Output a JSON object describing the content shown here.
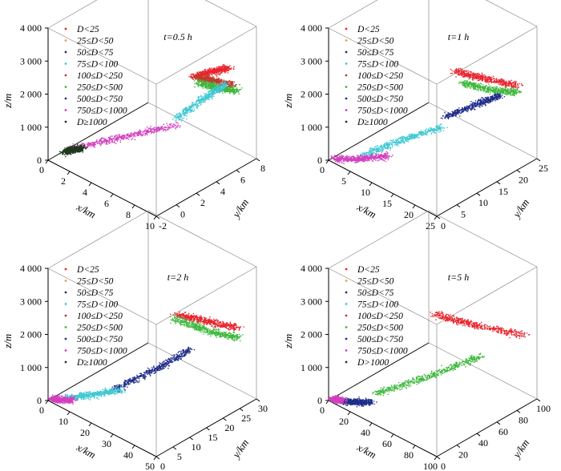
{
  "legend_colors": [
    "#e8242d",
    "#f39c3a",
    "#1f2d8a",
    "#3fc8d2",
    "#c0392b",
    "#3db83c",
    "#2b2f8f",
    "#d33fbf",
    "#1f3a1f"
  ],
  "chart_data": [
    {
      "type": "scatter",
      "panel": "a",
      "annotation": "t=0.5 h",
      "xlabel": "x/km",
      "ylabel": "y/km",
      "zlabel": "z/m",
      "z_ticks": [
        "0",
        "1 000",
        "2 000",
        "3 000",
        "4 000"
      ],
      "x_ticks": [
        "0",
        "2",
        "4",
        "6",
        "8",
        "10"
      ],
      "y_ticks": [
        "-2",
        "0",
        "2",
        "4",
        "6",
        "8"
      ],
      "legend": [
        "D<25",
        "25≤D<50",
        "50≤D<75",
        "75≤D<100",
        "100≤D<250",
        "250≤D<500",
        "500≤D<750",
        "750≤D<1000",
        "D≥1000"
      ],
      "xlim": [
        0,
        10
      ],
      "ylim": [
        -2,
        9
      ],
      "zlim": [
        0,
        4000
      ],
      "series": [
        {
          "name": "D<25",
          "x": [
            8.5,
            8.8,
            9.0
          ],
          "y": [
            4.0,
            5.5,
            7.0
          ],
          "z": [
            3050,
            3000,
            2900
          ]
        },
        {
          "name": "100≤D<250",
          "x": [
            8.2,
            8.6,
            9.0
          ],
          "y": [
            4.5,
            6.0,
            7.5
          ],
          "z": [
            2900,
            2600,
            2300
          ]
        },
        {
          "name": "250≤D<500",
          "x": [
            8.0,
            8.5,
            9.0
          ],
          "y": [
            5.0,
            6.5,
            8.0
          ],
          "z": [
            2600,
            2300,
            2050
          ]
        },
        {
          "name": "75≤D<100",
          "x": [
            6.0,
            7.0,
            8.0
          ],
          "y": [
            5.0,
            7.0,
            8.0
          ],
          "z": [
            1200,
            1700,
            2100
          ]
        },
        {
          "name": "750≤D<1000",
          "x": [
            0.5,
            3.0,
            6.0
          ],
          "y": [
            0.0,
            2.5,
            5.0
          ],
          "z": [
            150,
            500,
            1000
          ]
        },
        {
          "name": "D≥1000",
          "x": [
            0.3,
            0.6,
            1.0
          ],
          "y": [
            -0.5,
            0.0,
            0.5
          ],
          "z": [
            80,
            120,
            150
          ]
        }
      ]
    },
    {
      "type": "scatter",
      "panel": "b",
      "annotation": "t=1 h",
      "xlabel": "x/km",
      "ylabel": "y/km",
      "zlabel": "z/m",
      "z_ticks": [
        "0",
        "1 000",
        "2 000",
        "3 000",
        "4 000"
      ],
      "x_ticks": [
        "0",
        "5",
        "10",
        "15",
        "20",
        "25"
      ],
      "y_ticks": [
        "0",
        "5",
        "10",
        "15",
        "20",
        "25"
      ],
      "legend": [
        "D<25",
        "25≤D<50",
        "50≤D<75",
        "75≤D<100",
        "100≤D<250",
        "250≤D<500",
        "500≤D<750",
        "750≤D<1000",
        "D≥1000"
      ],
      "xlim": [
        0,
        25
      ],
      "ylim": [
        0,
        25
      ],
      "zlim": [
        0,
        4000
      ],
      "series": [
        {
          "name": "D<25",
          "x": [
            18,
            21,
            23
          ],
          "y": [
            12,
            17,
            22
          ],
          "z": [
            3100,
            2700,
            2300
          ]
        },
        {
          "name": "250≤D<500",
          "x": [
            18,
            21,
            23
          ],
          "y": [
            14,
            18,
            22
          ],
          "z": [
            2600,
            2300,
            2100
          ]
        },
        {
          "name": "50≤D<75",
          "x": [
            14,
            18,
            21
          ],
          "y": [
            14,
            18,
            20
          ],
          "z": [
            1300,
            1700,
            2000
          ]
        },
        {
          "name": "75≤D<100",
          "x": [
            5,
            10,
            15
          ],
          "y": [
            3,
            7,
            12
          ],
          "z": [
            300,
            800,
            1200
          ]
        },
        {
          "name": "750≤D<1000",
          "x": [
            1,
            5,
            9
          ],
          "y": [
            0,
            2,
            5
          ],
          "z": [
            120,
            250,
            400
          ]
        }
      ]
    },
    {
      "type": "scatter",
      "panel": "c",
      "annotation": "t=2 h",
      "xlabel": "x/km",
      "ylabel": "y/km",
      "zlabel": "z/m",
      "z_ticks": [
        "0",
        "1 000",
        "2 000",
        "3 000",
        "4 000"
      ],
      "x_ticks": [
        "0",
        "10",
        "20",
        "30",
        "40",
        "50"
      ],
      "y_ticks": [
        "0",
        "5",
        "10",
        "15",
        "20",
        "25",
        "30"
      ],
      "legend": [
        "D<25",
        "25≤D<50",
        "50≤D<75",
        "75≤D<100",
        "100≤D<250",
        "250≤D<500",
        "500≤D<750",
        "750≤D<1000",
        "D≥1000"
      ],
      "xlim": [
        0,
        50
      ],
      "ylim": [
        0,
        30
      ],
      "zlim": [
        0,
        4000
      ],
      "series": [
        {
          "name": "D<25",
          "x": [
            38,
            43,
            47
          ],
          "y": [
            14,
            20,
            26
          ],
          "z": [
            3100,
            2700,
            2300
          ]
        },
        {
          "name": "250≤D<500",
          "x": [
            35,
            41,
            46
          ],
          "y": [
            15,
            21,
            27
          ],
          "z": [
            2800,
            2300,
            1900
          ]
        },
        {
          "name": "50≤D<75",
          "x": [
            18,
            28,
            35
          ],
          "y": [
            8,
            15,
            20
          ],
          "z": [
            500,
            1100,
            1600
          ]
        },
        {
          "name": "75≤D<100",
          "x": [
            5,
            12,
            20
          ],
          "y": [
            2,
            5,
            9
          ],
          "z": [
            150,
            300,
            500
          ]
        },
        {
          "name": "750≤D<1000",
          "x": [
            1,
            4,
            8
          ],
          "y": [
            0,
            1,
            2
          ],
          "z": [
            80,
            120,
            180
          ]
        }
      ]
    },
    {
      "type": "scatter",
      "panel": "d",
      "annotation": "t=5 h",
      "xlabel": "x/km",
      "ylabel": "y/km",
      "zlabel": "z/m",
      "z_ticks": [
        "0",
        "1 000",
        "2 000",
        "3 000",
        "4 000"
      ],
      "x_ticks": [
        "0",
        "20",
        "40",
        "60",
        "80",
        "100"
      ],
      "y_ticks": [
        "0",
        "20",
        "40",
        "60",
        "80",
        "100"
      ],
      "legend": [
        "D<25",
        "25≤D<50",
        "50≤D<75",
        "75≤D<100",
        "100≤D<250",
        "250≤D<500",
        "500≤D<750",
        "750≤D<1000",
        "D>1000"
      ],
      "xlim": [
        0,
        100
      ],
      "ylim": [
        0,
        100
      ],
      "zlim": [
        0,
        4000
      ],
      "series": [
        {
          "name": "D<25",
          "x": [
            70,
            80,
            92
          ],
          "y": [
            30,
            60,
            95
          ],
          "z": [
            3300,
            2600,
            1900
          ]
        },
        {
          "name": "250≤D<500",
          "x": [
            25,
            50,
            75
          ],
          "y": [
            20,
            45,
            70
          ],
          "z": [
            300,
            800,
            1400
          ]
        },
        {
          "name": "50≤D<75",
          "x": [
            10,
            20,
            30
          ],
          "y": [
            2,
            6,
            10
          ],
          "z": [
            120,
            200,
            300
          ]
        },
        {
          "name": "750≤D<1000",
          "x": [
            1,
            5,
            10
          ],
          "y": [
            0,
            1,
            2
          ],
          "z": [
            60,
            100,
            140
          ]
        }
      ]
    }
  ]
}
